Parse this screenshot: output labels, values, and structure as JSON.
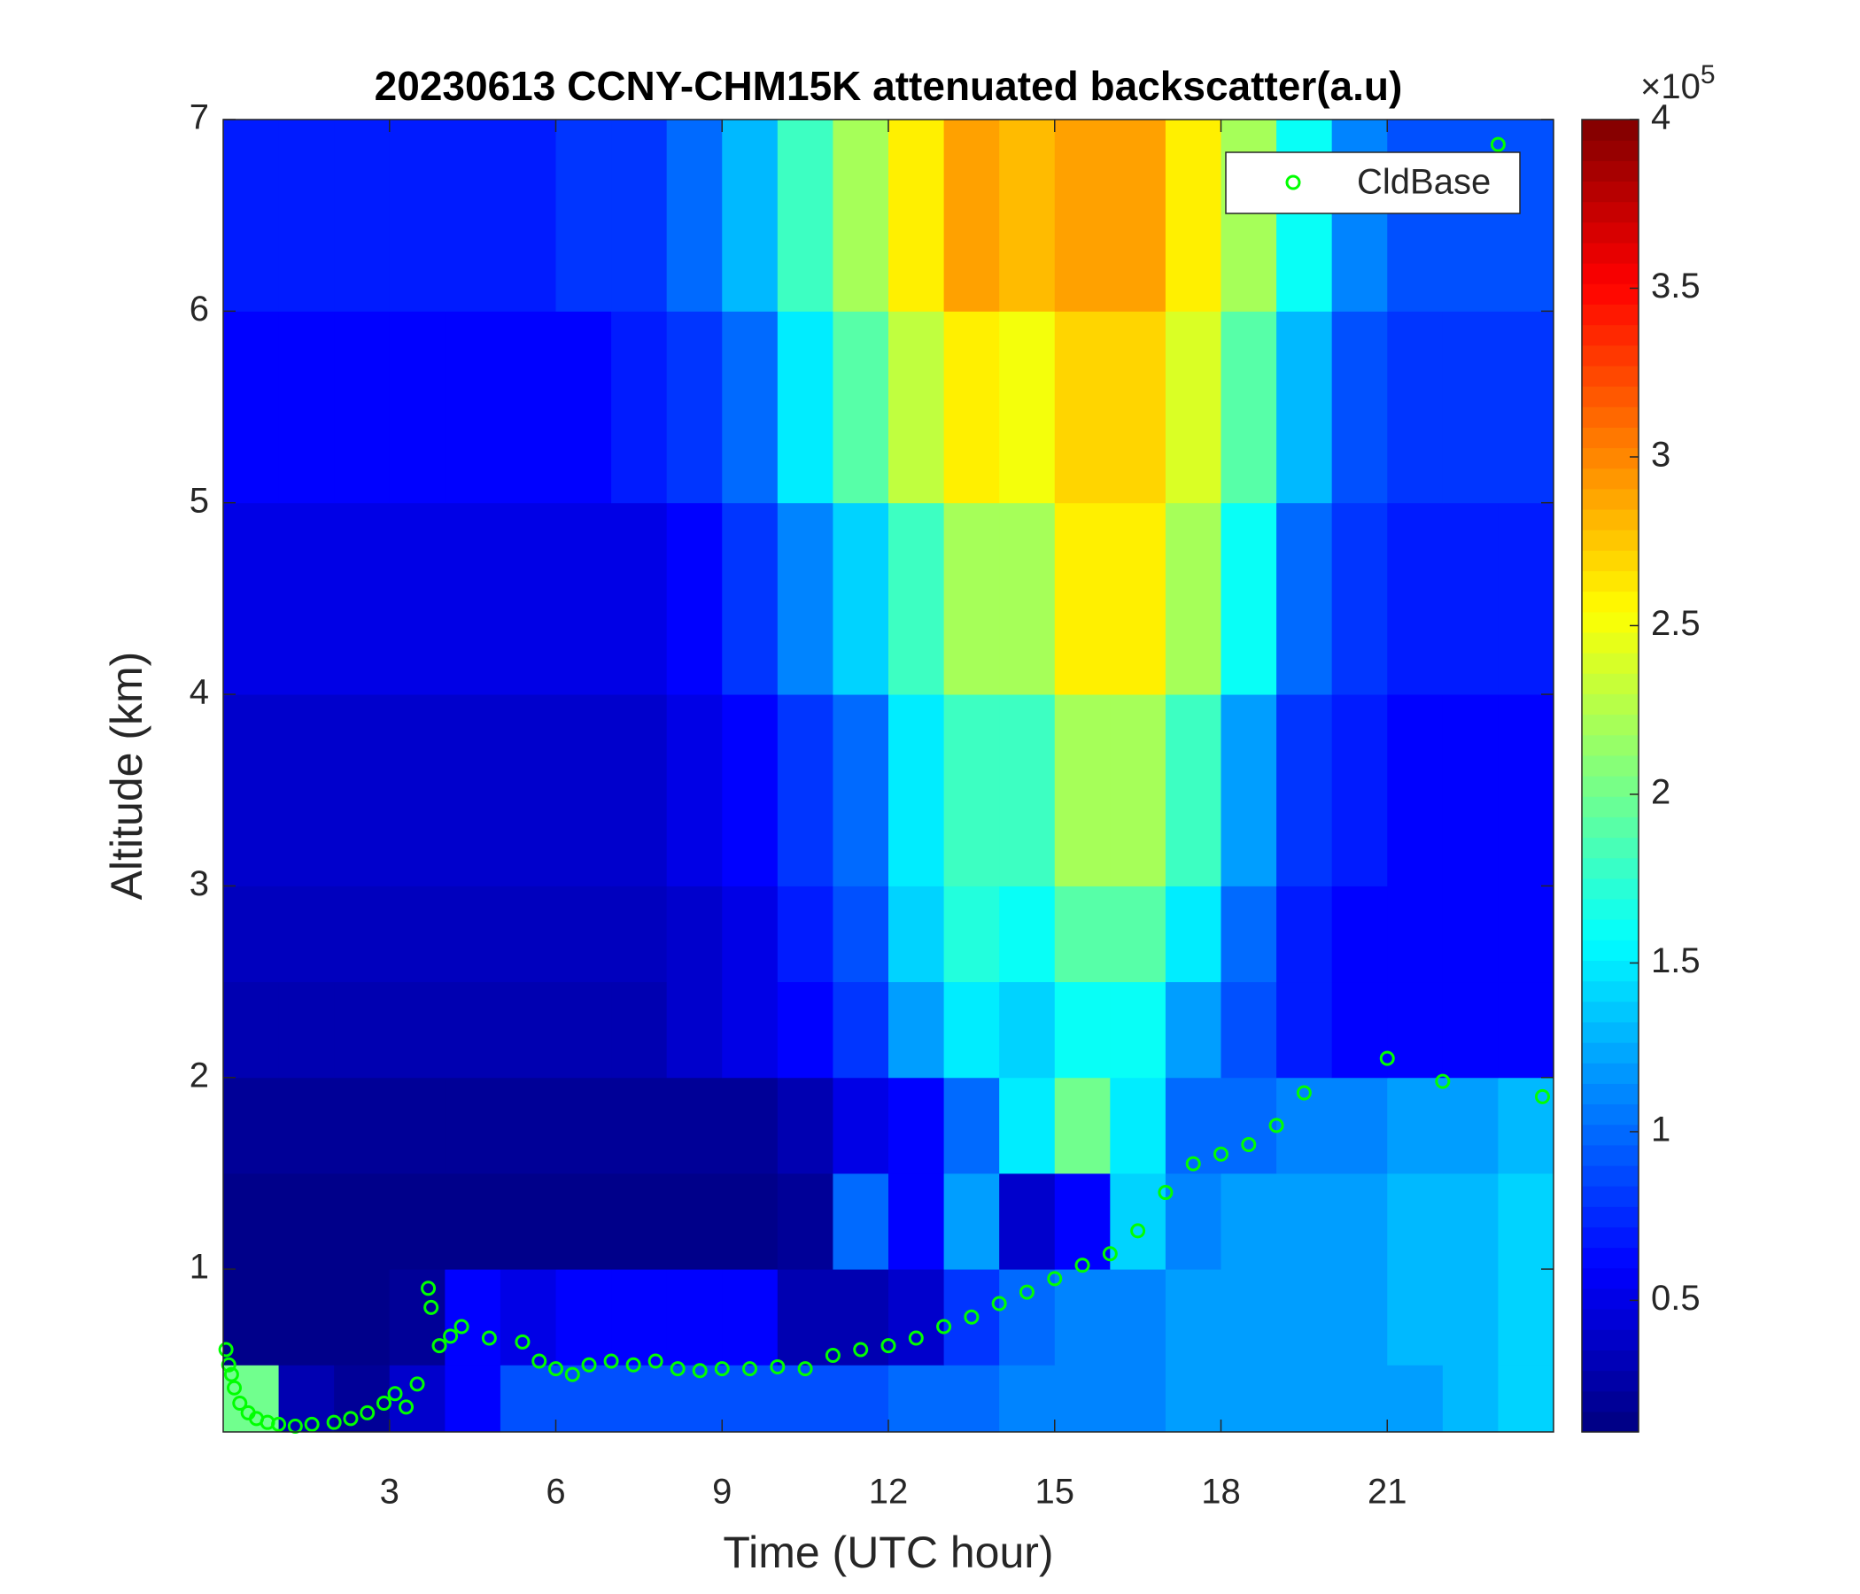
{
  "chart_data": {
    "type": "heatmap",
    "title": "20230613 CCNY-CHM15K attenuated backscatter(a.u)",
    "x_label": "Time (UTC hour)",
    "y_label": "Altitude (km)",
    "xlim": [
      0,
      24
    ],
    "xticks": [
      3,
      6,
      9,
      12,
      15,
      18,
      21
    ],
    "ylim": [
      0.15,
      7
    ],
    "yticks": [
      1,
      2,
      3,
      4,
      5,
      6,
      7
    ],
    "colormap": "jet",
    "x_bins": [
      0,
      1,
      2,
      3,
      4,
      5,
      6,
      7,
      8,
      9,
      10,
      11,
      12,
      13,
      14,
      15,
      16,
      17,
      18,
      19,
      20,
      21,
      22,
      23,
      24
    ],
    "y_bins": [
      0.15,
      0.5,
      1,
      1.5,
      2,
      2.5,
      3,
      4,
      5,
      6,
      7
    ],
    "values": [
      [
        2.0,
        0.3,
        0.2,
        0.4,
        0.6,
        0.9,
        0.9,
        0.9,
        0.9,
        0.9,
        0.9,
        0.9,
        1.0,
        1.0,
        1.1,
        1.1,
        1.1,
        1.2,
        1.2,
        1.2,
        1.2,
        1.2,
        1.3,
        1.4
      ],
      [
        0.15,
        0.15,
        0.15,
        0.2,
        0.6,
        0.5,
        0.6,
        0.6,
        0.6,
        0.6,
        0.3,
        0.3,
        0.4,
        0.8,
        1.0,
        1.1,
        1.1,
        1.2,
        1.2,
        1.2,
        1.2,
        1.3,
        1.3,
        1.4
      ],
      [
        0.15,
        0.15,
        0.15,
        0.15,
        0.15,
        0.15,
        0.15,
        0.15,
        0.15,
        0.15,
        0.2,
        1.0,
        0.6,
        1.2,
        0.4,
        0.6,
        1.4,
        1.1,
        1.2,
        1.2,
        1.2,
        1.3,
        1.3,
        1.4
      ],
      [
        0.2,
        0.2,
        0.2,
        0.2,
        0.2,
        0.2,
        0.2,
        0.2,
        0.2,
        0.2,
        0.3,
        0.5,
        0.6,
        1.0,
        1.5,
        2.0,
        1.5,
        1.0,
        1.0,
        1.1,
        1.1,
        1.2,
        1.2,
        1.3
      ],
      [
        0.3,
        0.3,
        0.3,
        0.3,
        0.3,
        0.3,
        0.3,
        0.3,
        0.4,
        0.5,
        0.6,
        0.8,
        1.2,
        1.5,
        1.4,
        1.6,
        1.6,
        1.2,
        0.9,
        0.7,
        0.6,
        0.6,
        0.6,
        0.6
      ],
      [
        0.35,
        0.35,
        0.35,
        0.35,
        0.35,
        0.35,
        0.35,
        0.35,
        0.4,
        0.5,
        0.7,
        0.9,
        1.4,
        1.7,
        1.6,
        1.9,
        1.9,
        1.5,
        1.0,
        0.7,
        0.6,
        0.6,
        0.6,
        0.6
      ],
      [
        0.4,
        0.4,
        0.4,
        0.4,
        0.4,
        0.4,
        0.4,
        0.4,
        0.5,
        0.6,
        0.8,
        1.0,
        1.5,
        1.8,
        1.8,
        2.2,
        2.2,
        1.8,
        1.2,
        0.8,
        0.7,
        0.6,
        0.6,
        0.6
      ],
      [
        0.5,
        0.5,
        0.5,
        0.5,
        0.5,
        0.5,
        0.5,
        0.5,
        0.6,
        0.8,
        1.1,
        1.4,
        1.8,
        2.2,
        2.2,
        2.6,
        2.6,
        2.2,
        1.6,
        1.0,
        0.8,
        0.7,
        0.7,
        0.7
      ],
      [
        0.6,
        0.6,
        0.6,
        0.6,
        0.6,
        0.6,
        0.6,
        0.7,
        0.8,
        1.0,
        1.5,
        1.9,
        2.3,
        2.6,
        2.5,
        2.7,
        2.7,
        2.4,
        1.9,
        1.3,
        0.9,
        0.8,
        0.8,
        0.8
      ],
      [
        0.7,
        0.7,
        0.7,
        0.7,
        0.7,
        0.7,
        0.8,
        0.8,
        1.0,
        1.3,
        1.8,
        2.2,
        2.6,
        2.9,
        2.8,
        2.9,
        2.9,
        2.6,
        2.2,
        1.6,
        1.1,
        0.9,
        0.9,
        0.9
      ]
    ],
    "colorbar": {
      "lim": [
        0.11,
        4
      ],
      "ticks": [
        0.5,
        1,
        1.5,
        2,
        2.5,
        3,
        3.5,
        4
      ],
      "exponent_base": "×10",
      "exponent_power": "5"
    },
    "series": [
      {
        "name": "CldBase",
        "type": "scatter",
        "color": "#00ff00",
        "x": [
          0.05,
          0.1,
          0.15,
          0.2,
          0.3,
          0.45,
          0.6,
          0.8,
          1.0,
          1.3,
          1.6,
          2.0,
          2.3,
          2.6,
          2.9,
          3.1,
          3.3,
          3.5,
          3.7,
          3.75,
          3.9,
          4.1,
          4.3,
          4.8,
          5.4,
          5.7,
          6.0,
          6.3,
          6.6,
          7.0,
          7.4,
          7.8,
          8.2,
          8.6,
          9.0,
          9.5,
          10.0,
          10.5,
          11.0,
          11.5,
          12.0,
          12.5,
          13.0,
          13.5,
          14.0,
          14.5,
          15.0,
          15.5,
          16.0,
          16.5,
          17.0,
          17.5,
          18.0,
          18.5,
          19.0,
          19.5,
          21.0,
          22.0,
          23.0,
          23.8
        ],
        "y": [
          0.58,
          0.5,
          0.45,
          0.38,
          0.3,
          0.25,
          0.22,
          0.2,
          0.19,
          0.18,
          0.19,
          0.2,
          0.22,
          0.25,
          0.3,
          0.35,
          0.28,
          0.4,
          0.9,
          0.8,
          0.6,
          0.65,
          0.7,
          0.64,
          0.62,
          0.52,
          0.48,
          0.45,
          0.5,
          0.52,
          0.5,
          0.52,
          0.48,
          0.47,
          0.48,
          0.48,
          0.49,
          0.48,
          0.55,
          0.58,
          0.6,
          0.64,
          0.7,
          0.75,
          0.82,
          0.88,
          0.95,
          1.02,
          1.08,
          1.2,
          1.4,
          1.55,
          1.6,
          1.65,
          1.75,
          1.92,
          2.1,
          1.98,
          6.87,
          1.9
        ]
      }
    ],
    "legend": "upper right"
  }
}
